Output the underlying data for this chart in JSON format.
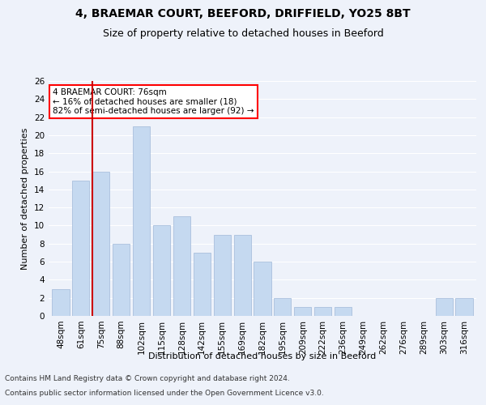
{
  "title1": "4, BRAEMAR COURT, BEEFORD, DRIFFIELD, YO25 8BT",
  "title2": "Size of property relative to detached houses in Beeford",
  "xlabel": "Distribution of detached houses by size in Beeford",
  "ylabel": "Number of detached properties",
  "categories": [
    "48sqm",
    "61sqm",
    "75sqm",
    "88sqm",
    "102sqm",
    "115sqm",
    "128sqm",
    "142sqm",
    "155sqm",
    "169sqm",
    "182sqm",
    "195sqm",
    "209sqm",
    "222sqm",
    "236sqm",
    "249sqm",
    "262sqm",
    "276sqm",
    "289sqm",
    "303sqm",
    "316sqm"
  ],
  "values": [
    3,
    15,
    16,
    8,
    21,
    10,
    11,
    7,
    9,
    9,
    6,
    2,
    1,
    1,
    1,
    0,
    0,
    0,
    0,
    2,
    2
  ],
  "bar_color": "#c5d9f0",
  "bar_edge_color": "#a0b8d8",
  "red_line_index": 2,
  "annotation_title": "4 BRAEMAR COURT: 76sqm",
  "annotation_line1": "← 16% of detached houses are smaller (18)",
  "annotation_line2": "82% of semi-detached houses are larger (92) →",
  "annotation_box_color": "white",
  "annotation_box_edge": "red",
  "red_line_color": "#cc0000",
  "ylim": [
    0,
    26
  ],
  "yticks": [
    0,
    2,
    4,
    6,
    8,
    10,
    12,
    14,
    16,
    18,
    20,
    22,
    24,
    26
  ],
  "footnote1": "Contains HM Land Registry data © Crown copyright and database right 2024.",
  "footnote2": "Contains public sector information licensed under the Open Government Licence v3.0.",
  "background_color": "#eef2fa",
  "grid_color": "white",
  "title1_fontsize": 10,
  "title2_fontsize": 9,
  "axis_label_fontsize": 8,
  "tick_fontsize": 7.5,
  "footnote_fontsize": 6.5,
  "annotation_fontsize": 7.5
}
